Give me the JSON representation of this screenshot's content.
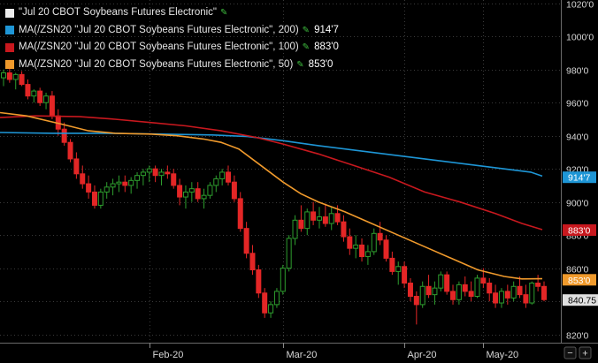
{
  "colors": {
    "background": "#000000",
    "grid": "#3a3a3a",
    "candle_up": "#2e9e2e",
    "candle_down": "#e32626",
    "ma200": "#1e96d6",
    "ma100": "#c8181e",
    "ma50": "#f09a2c",
    "price_box": "#e0e0e0"
  },
  "legend": [
    {
      "name": "\"Jul 20 CBOT Soybeans Futures Electronic\"",
      "edit_icon": "pencil-icon",
      "value": "",
      "color": "#ececec"
    },
    {
      "name": "MA(/ZSN20 \"Jul 20 CBOT Soybeans Futures Electronic\", 200)",
      "edit_icon": "pencil-icon",
      "value": "914'7",
      "color": "#1e96d6"
    },
    {
      "name": "MA(/ZSN20 \"Jul 20 CBOT Soybeans Futures Electronic\", 100)",
      "edit_icon": "pencil-icon",
      "value": "883'0",
      "color": "#c8181e"
    },
    {
      "name": "MA(/ZSN20 \"Jul 20 CBOT Soybeans Futures Electronic\", 50)",
      "edit_icon": "pencil-icon",
      "value": "853'0",
      "color": "#f09a2c"
    }
  ],
  "axis_labels": {
    "y_ticks": [
      "820'0",
      "840'0",
      "860'0",
      "880'0",
      "900'0",
      "920'0",
      "940'0",
      "960'0",
      "980'0",
      "1000'0",
      "1020'0"
    ],
    "y_tick_values": [
      820,
      840,
      860,
      880,
      900,
      920,
      940,
      960,
      980,
      1000,
      1020
    ],
    "x_ticks": [
      "Feb-20",
      "Mar-20",
      "Apr-20",
      "May-20"
    ]
  },
  "price_labels": {
    "ma200": "914'7",
    "ma100": "883'0",
    "ma50": "853'0",
    "last": "840.75"
  },
  "chart_data": {
    "type": "candlestick",
    "ylim": [
      815,
      1022
    ],
    "grid": true,
    "ma200_points": [
      [
        0,
        942
      ],
      [
        60,
        941.5
      ],
      [
        120,
        941.5
      ],
      [
        180,
        941
      ],
      [
        240,
        940.5
      ],
      [
        280,
        939.5
      ],
      [
        320,
        937
      ],
      [
        360,
        934
      ],
      [
        420,
        930
      ],
      [
        480,
        926
      ],
      [
        540,
        922
      ],
      [
        600,
        918
      ],
      [
        613,
        915.6
      ]
    ],
    "ma100_points": [
      [
        0,
        951
      ],
      [
        40,
        952
      ],
      [
        90,
        951.5
      ],
      [
        130,
        950
      ],
      [
        170,
        948
      ],
      [
        210,
        946
      ],
      [
        250,
        943
      ],
      [
        290,
        939
      ],
      [
        320,
        935
      ],
      [
        360,
        929
      ],
      [
        400,
        922
      ],
      [
        440,
        915
      ],
      [
        480,
        906
      ],
      [
        520,
        900
      ],
      [
        560,
        893
      ],
      [
        590,
        887
      ],
      [
        613,
        883.3
      ]
    ],
    "ma50_points": [
      [
        0,
        954
      ],
      [
        30,
        952
      ],
      [
        70,
        947
      ],
      [
        100,
        943
      ],
      [
        130,
        941.5
      ],
      [
        170,
        941
      ],
      [
        200,
        940
      ],
      [
        230,
        938
      ],
      [
        250,
        936
      ],
      [
        270,
        932
      ],
      [
        290,
        924
      ],
      [
        320,
        912
      ],
      [
        340,
        905
      ],
      [
        360,
        900
      ],
      [
        390,
        894
      ],
      [
        420,
        887
      ],
      [
        450,
        880
      ],
      [
        480,
        873
      ],
      [
        510,
        866
      ],
      [
        540,
        859
      ],
      [
        570,
        855
      ],
      [
        590,
        853.5
      ],
      [
        613,
        853.6
      ]
    ],
    "candles": [
      [
        975,
        980,
        970,
        978
      ],
      [
        978,
        982,
        972,
        974
      ],
      [
        974,
        978,
        968,
        977
      ],
      [
        977,
        979,
        970,
        971
      ],
      [
        971,
        974,
        962,
        964
      ],
      [
        964,
        968,
        960,
        967
      ],
      [
        967,
        969,
        958,
        960
      ],
      [
        960,
        966,
        956,
        964
      ],
      [
        964,
        967,
        950,
        952
      ],
      [
        952,
        956,
        940,
        944
      ],
      [
        944,
        948,
        934,
        936
      ],
      [
        936,
        938,
        924,
        926
      ],
      [
        926,
        930,
        914,
        917
      ],
      [
        917,
        922,
        908,
        911
      ],
      [
        911,
        916,
        902,
        906
      ],
      [
        906,
        910,
        896,
        898
      ],
      [
        898,
        908,
        896,
        906
      ],
      [
        906,
        912,
        902,
        909
      ],
      [
        909,
        914,
        904,
        911
      ],
      [
        911,
        916,
        906,
        912
      ],
      [
        912,
        916,
        906,
        910
      ],
      [
        910,
        915,
        905,
        913
      ],
      [
        913,
        918,
        908,
        916
      ],
      [
        916,
        920,
        910,
        918
      ],
      [
        918,
        922,
        912,
        920
      ],
      [
        920,
        922,
        912,
        916
      ],
      [
        916,
        920,
        910,
        918
      ],
      [
        918,
        922,
        914,
        917
      ],
      [
        917,
        920,
        908,
        910
      ],
      [
        910,
        914,
        898,
        903
      ],
      [
        903,
        910,
        896,
        906
      ],
      [
        906,
        912,
        900,
        908
      ],
      [
        908,
        912,
        900,
        902
      ],
      [
        902,
        908,
        896,
        904
      ],
      [
        904,
        912,
        902,
        910
      ],
      [
        910,
        916,
        906,
        914
      ],
      [
        914,
        920,
        910,
        918
      ],
      [
        918,
        922,
        910,
        912
      ],
      [
        912,
        916,
        900,
        902
      ],
      [
        902,
        906,
        882,
        884
      ],
      [
        884,
        888,
        866,
        869
      ],
      [
        869,
        874,
        856,
        859
      ],
      [
        859,
        862,
        842,
        845
      ],
      [
        845,
        848,
        830,
        833
      ],
      [
        833,
        840,
        830,
        838
      ],
      [
        838,
        848,
        836,
        846
      ],
      [
        846,
        862,
        844,
        860
      ],
      [
        860,
        880,
        858,
        878
      ],
      [
        878,
        892,
        874,
        889
      ],
      [
        889,
        898,
        882,
        884
      ],
      [
        884,
        896,
        880,
        894
      ],
      [
        894,
        900,
        886,
        889
      ],
      [
        889,
        897,
        884,
        891
      ],
      [
        891,
        899,
        885,
        887
      ],
      [
        887,
        897,
        883,
        893
      ],
      [
        893,
        898,
        886,
        888
      ],
      [
        888,
        892,
        876,
        879
      ],
      [
        879,
        884,
        868,
        872
      ],
      [
        872,
        880,
        866,
        874
      ],
      [
        874,
        878,
        864,
        867
      ],
      [
        867,
        874,
        862,
        870
      ],
      [
        870,
        884,
        868,
        881
      ],
      [
        881,
        888,
        874,
        877
      ],
      [
        877,
        880,
        864,
        866
      ],
      [
        866,
        870,
        856,
        858
      ],
      [
        858,
        864,
        850,
        861
      ],
      [
        861,
        864,
        848,
        851
      ],
      [
        851,
        854,
        840,
        843
      ],
      [
        843,
        846,
        826,
        838
      ],
      [
        838,
        852,
        836,
        849
      ],
      [
        849,
        856,
        842,
        844
      ],
      [
        844,
        852,
        838,
        848
      ],
      [
        848,
        858,
        846,
        856
      ],
      [
        856,
        858,
        844,
        846
      ],
      [
        846,
        850,
        838,
        841
      ],
      [
        841,
        852,
        838,
        850
      ],
      [
        850,
        855,
        843,
        846
      ],
      [
        846,
        852,
        840,
        843
      ],
      [
        843,
        856,
        842,
        854
      ],
      [
        854,
        860,
        848,
        851
      ],
      [
        851,
        854,
        840,
        845
      ],
      [
        845,
        850,
        836,
        839
      ],
      [
        839,
        848,
        836,
        846
      ],
      [
        846,
        850,
        838,
        842
      ],
      [
        842,
        852,
        840,
        849
      ],
      [
        849,
        855,
        842,
        844
      ],
      [
        844,
        850,
        836,
        839
      ],
      [
        839,
        852,
        838,
        851
      ],
      [
        851,
        856,
        846,
        849
      ],
      [
        849,
        852,
        840,
        841
      ]
    ]
  }
}
